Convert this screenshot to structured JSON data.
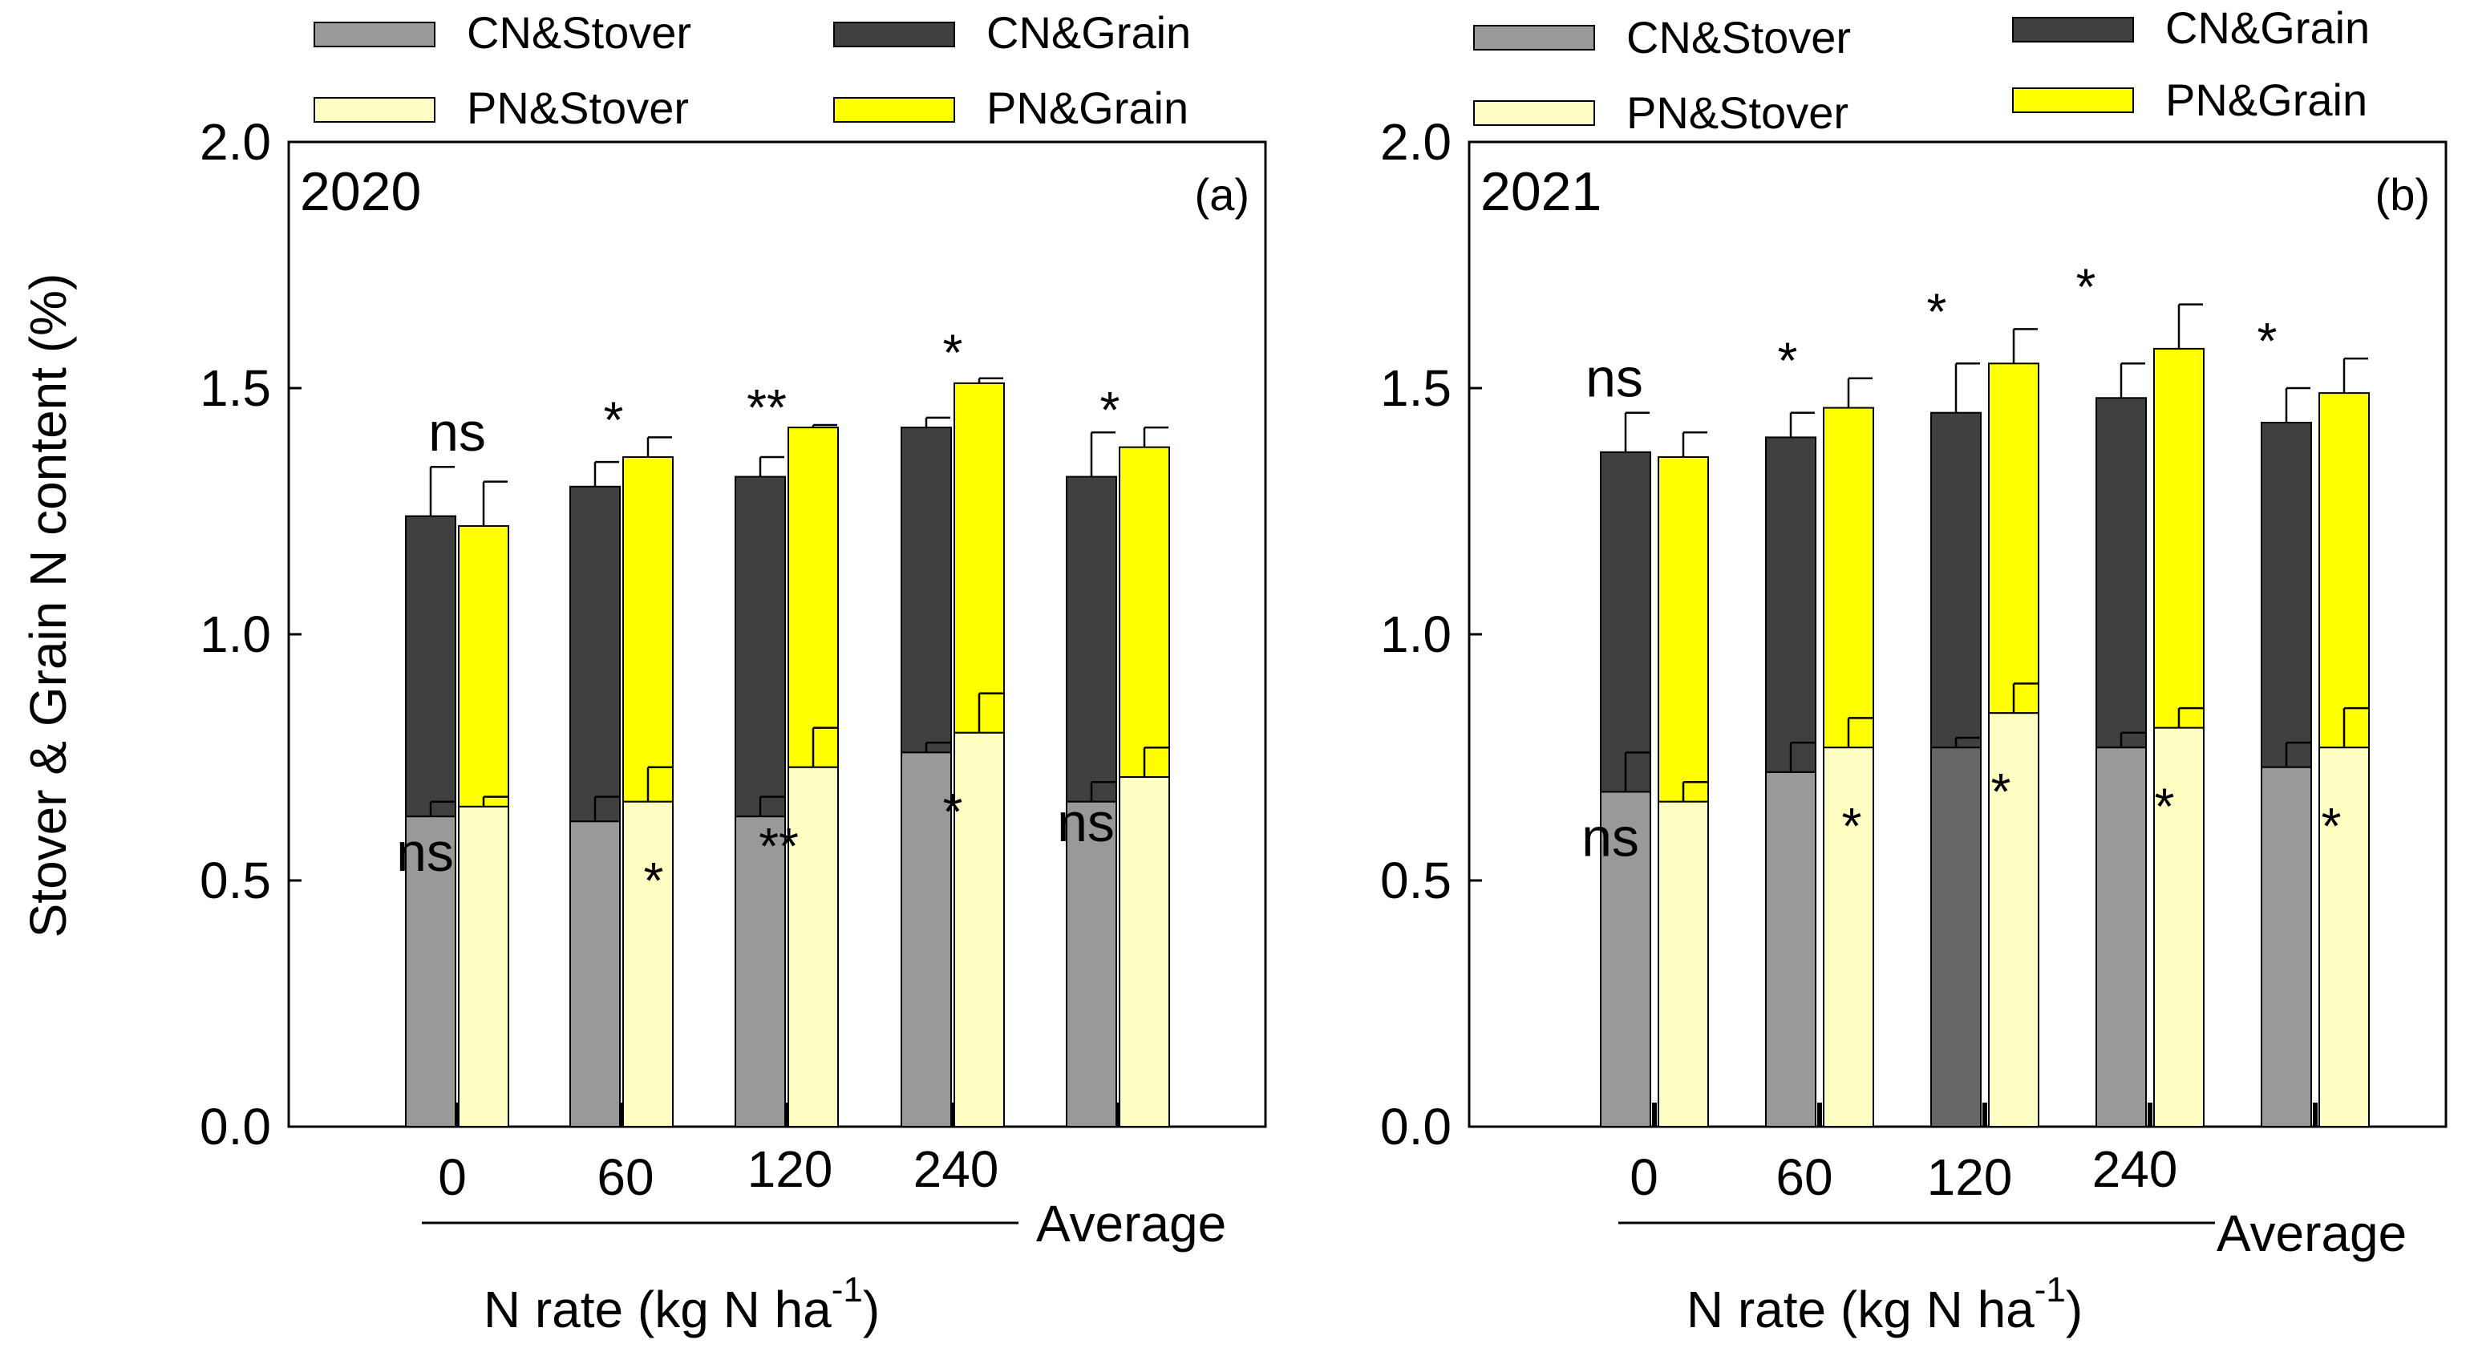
{
  "figure": {
    "ylabel": "Stover & Grain N content (%)",
    "xlabel_main": "N rate (kg N ha",
    "xlabel_sup": "-1",
    "xlabel_close": ")",
    "average_label": "Average"
  },
  "legend": {
    "cn_stover": "CN&Stover",
    "cn_grain": "CN&Grain",
    "pn_stover": "PN&Stover",
    "pn_grain": "PN&Grain"
  },
  "colors": {
    "cn_stover": "#999999",
    "cn_stover_dark": "#666666",
    "cn_grain": "#404040",
    "pn_stover": "#ffffc4",
    "pn_grain": "#ffff00"
  },
  "chart_data": [
    {
      "type": "bar",
      "stacked": true,
      "panel_year": "2020",
      "panel_label": "(a)",
      "categories": [
        "0",
        "60",
        "120",
        "240",
        "Average"
      ],
      "tick_labels": [
        "0",
        "60",
        "120",
        "240"
      ],
      "ylim": [
        0,
        2.0
      ],
      "yticks": [
        "0.0",
        "0.5",
        "1.0",
        "1.5",
        "2.0"
      ],
      "series": [
        {
          "name": "CN&Stover",
          "values": [
            0.63,
            0.62,
            0.63,
            0.76,
            0.66
          ],
          "errors": [
            0.03,
            0.05,
            0.04,
            0.02,
            0.04
          ]
        },
        {
          "name": "CN&Grain",
          "totals": [
            1.24,
            1.3,
            1.32,
            1.42,
            1.32
          ],
          "errors": [
            0.1,
            0.05,
            0.04,
            0.02,
            0.09
          ]
        },
        {
          "name": "PN&Stover",
          "values": [
            0.65,
            0.66,
            0.73,
            0.8,
            0.71
          ],
          "errors": [
            0.02,
            0.07,
            0.08,
            0.08,
            0.06
          ]
        },
        {
          "name": "PN&Grain",
          "totals": [
            1.22,
            1.36,
            1.42,
            1.51,
            1.38
          ],
          "errors": [
            0.09,
            0.04,
            0.005,
            0.01,
            0.04
          ]
        }
      ],
      "grain_signif": [
        "ns",
        "*",
        "**",
        "*",
        "*"
      ],
      "stover_signif": [
        "ns",
        "*",
        "**",
        "*",
        "ns"
      ]
    },
    {
      "type": "bar",
      "stacked": true,
      "panel_year": "2021",
      "panel_label": "(b)",
      "categories": [
        "0",
        "60",
        "120",
        "240",
        "Average"
      ],
      "tick_labels": [
        "0",
        "60",
        "120",
        "240"
      ],
      "ylim": [
        0,
        2.0
      ],
      "yticks": [
        "0.0",
        "0.5",
        "1.0",
        "1.5",
        "2.0"
      ],
      "series": [
        {
          "name": "CN&Stover",
          "values": [
            0.68,
            0.72,
            0.77,
            0.77,
            0.73
          ],
          "errors": [
            0.08,
            0.06,
            0.02,
            0.03,
            0.05
          ]
        },
        {
          "name": "CN&Grain",
          "totals": [
            1.37,
            1.4,
            1.45,
            1.48,
            1.43
          ],
          "errors": [
            0.08,
            0.05,
            0.1,
            0.07,
            0.07
          ]
        },
        {
          "name": "PN&Stover",
          "values": [
            0.66,
            0.77,
            0.84,
            0.81,
            0.77
          ],
          "errors": [
            0.04,
            0.06,
            0.06,
            0.04,
            0.08
          ]
        },
        {
          "name": "PN&Grain",
          "totals": [
            1.36,
            1.46,
            1.55,
            1.58,
            1.49
          ],
          "errors": [
            0.05,
            0.06,
            0.07,
            0.09,
            0.07
          ]
        }
      ],
      "grain_signif": [
        "ns",
        "*",
        "*",
        "*",
        "*"
      ],
      "stover_signif": [
        "ns",
        "*",
        "*",
        "*",
        "*"
      ]
    }
  ]
}
